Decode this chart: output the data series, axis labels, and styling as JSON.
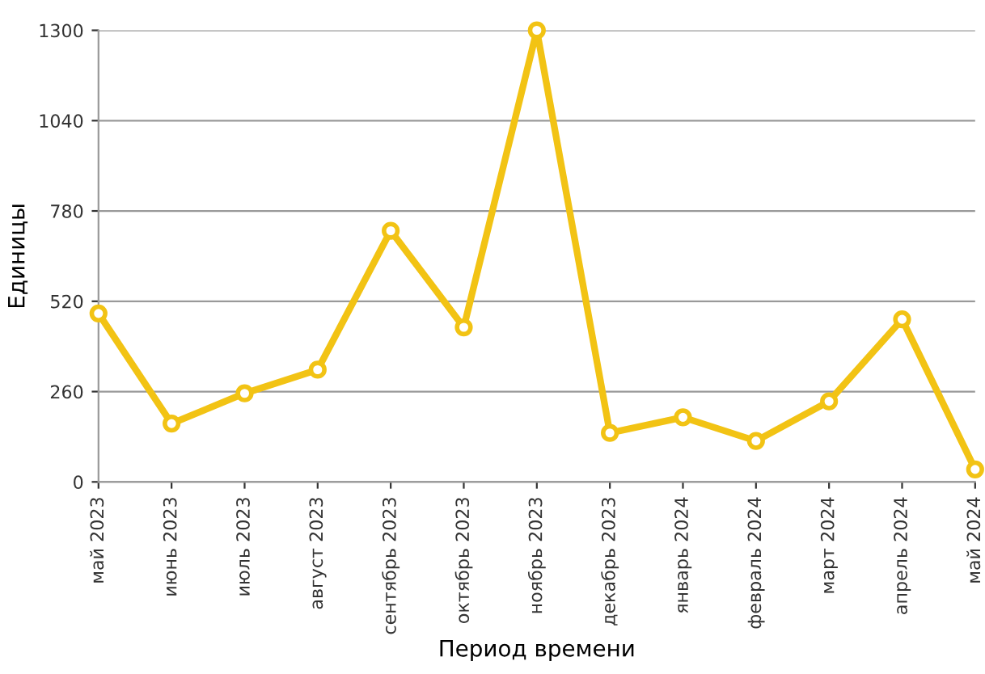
{
  "chart_data": {
    "type": "line",
    "xlabel": "Период времени",
    "ylabel": "Единицы",
    "categories": [
      "май 2023",
      "июнь 2023",
      "июль 2023",
      "август 2023",
      "сентябрь 2023",
      "октябрь 2023",
      "ноябрь 2023",
      "декабрь 2023",
      "январь 2024",
      "февраль 2024",
      "март 2024",
      "апрель 2024",
      "май 2024"
    ],
    "series": [
      {
        "color": "#f2c314",
        "values": [
          485,
          168,
          255,
          323,
          723,
          445,
          1300,
          141,
          186,
          118,
          232,
          468,
          36
        ]
      }
    ],
    "ylim": [
      0,
      1300
    ],
    "yticks": [
      0,
      260,
      520,
      780,
      1040,
      1300
    ],
    "grid": "y",
    "marker": "circle",
    "line_style": "solid",
    "legend": false
  }
}
